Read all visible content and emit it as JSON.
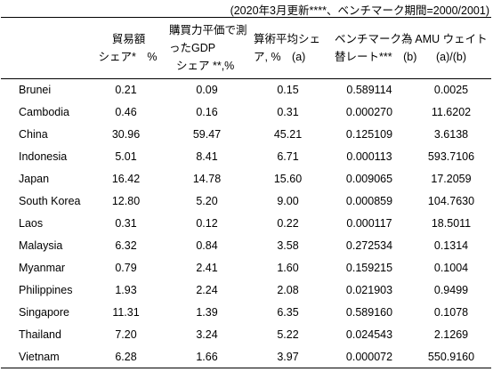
{
  "caption": "(2020年3月更新****、ベンチマーク期間=2000/2001)",
  "headers": [
    {
      "line1": "",
      "line2": ""
    },
    {
      "line1": "貿易額",
      "line2": "シェア*　%"
    },
    {
      "line1": "購買力平価で測ったGDP",
      "line2": "シェア **,%"
    },
    {
      "line1": "算術平均シェ",
      "line2": "ア, %　(a)"
    },
    {
      "line1": "ベンチマーク為",
      "line2": "替レート***　(b)"
    },
    {
      "line1": "AMU ウェイト",
      "line2": "(a)/(b)"
    }
  ],
  "rows": [
    {
      "country": "Brunei",
      "trade_share": "0.21",
      "gdp_ppp_share": "0.09",
      "avg_share": "0.15",
      "benchmark_rate": "0.589114",
      "amu_weight": "0.0025"
    },
    {
      "country": "Cambodia",
      "trade_share": "0.46",
      "gdp_ppp_share": "0.16",
      "avg_share": "0.31",
      "benchmark_rate": "0.000270",
      "amu_weight": "11.6202"
    },
    {
      "country": "China",
      "trade_share": "30.96",
      "gdp_ppp_share": "59.47",
      "avg_share": "45.21",
      "benchmark_rate": "0.125109",
      "amu_weight": "3.6138"
    },
    {
      "country": "Indonesia",
      "trade_share": "5.01",
      "gdp_ppp_share": "8.41",
      "avg_share": "6.71",
      "benchmark_rate": "0.000113",
      "amu_weight": "593.7106"
    },
    {
      "country": "Japan",
      "trade_share": "16.42",
      "gdp_ppp_share": "14.78",
      "avg_share": "15.60",
      "benchmark_rate": "0.009065",
      "amu_weight": "17.2059"
    },
    {
      "country": "South Korea",
      "trade_share": "12.80",
      "gdp_ppp_share": "5.20",
      "avg_share": "9.00",
      "benchmark_rate": "0.000859",
      "amu_weight": "104.7630"
    },
    {
      "country": "Laos",
      "trade_share": "0.31",
      "gdp_ppp_share": "0.12",
      "avg_share": "0.22",
      "benchmark_rate": "0.000117",
      "amu_weight": "18.5011"
    },
    {
      "country": "Malaysia",
      "trade_share": "6.32",
      "gdp_ppp_share": "0.84",
      "avg_share": "3.58",
      "benchmark_rate": "0.272534",
      "amu_weight": "0.1314"
    },
    {
      "country": "Myanmar",
      "trade_share": "0.79",
      "gdp_ppp_share": "2.41",
      "avg_share": "1.60",
      "benchmark_rate": "0.159215",
      "amu_weight": "0.1004"
    },
    {
      "country": "Philippines",
      "trade_share": "1.93",
      "gdp_ppp_share": "2.24",
      "avg_share": "2.08",
      "benchmark_rate": "0.021903",
      "amu_weight": "0.9499"
    },
    {
      "country": "Singapore",
      "trade_share": "11.31",
      "gdp_ppp_share": "1.39",
      "avg_share": "6.35",
      "benchmark_rate": "0.589160",
      "amu_weight": "0.1078"
    },
    {
      "country": "Thailand",
      "trade_share": "7.20",
      "gdp_ppp_share": "3.24",
      "avg_share": "5.22",
      "benchmark_rate": "0.024543",
      "amu_weight": "2.1269"
    },
    {
      "country": "Vietnam",
      "trade_share": "6.28",
      "gdp_ppp_share": "1.66",
      "avg_share": "3.97",
      "benchmark_rate": "0.000072",
      "amu_weight": "550.9160"
    }
  ]
}
